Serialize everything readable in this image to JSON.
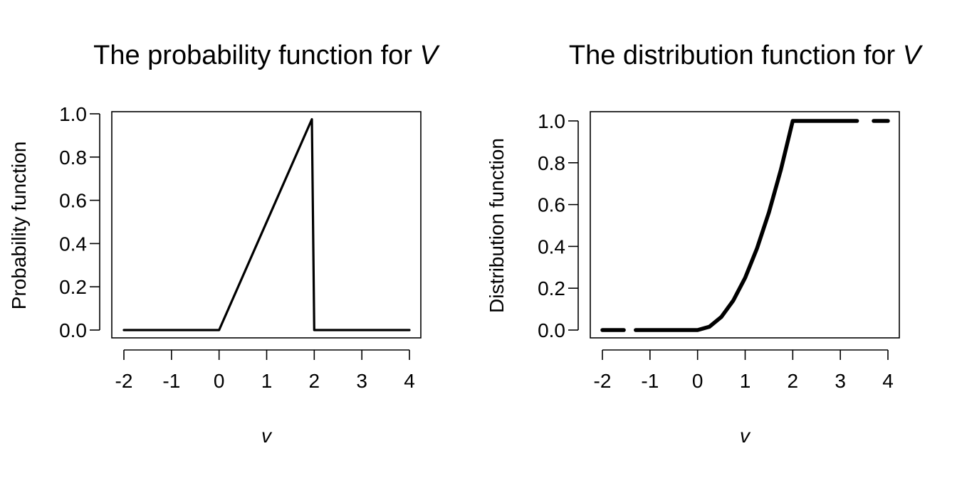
{
  "chart_data": [
    {
      "type": "line",
      "title_text": "The probability function for ",
      "title_var": "V",
      "xlabel": "v",
      "ylabel": "Probability function",
      "xlim": [
        -2,
        4
      ],
      "ylim": [
        0,
        1
      ],
      "xticks": [
        "-2",
        "-1",
        "0",
        "1",
        "2",
        "3",
        "4"
      ],
      "yticks": [
        "0.0",
        "0.2",
        "0.4",
        "0.6",
        "0.8",
        "1.0"
      ],
      "grid": false,
      "legend": "none",
      "line_color": "#000000",
      "series": [
        {
          "x": [
            -2,
            0,
            1.95,
            2.0,
            4
          ],
          "y": [
            0,
            0,
            0.975,
            0,
            0
          ]
        }
      ]
    },
    {
      "type": "line",
      "title_text": "The distribution function for ",
      "title_var": "V",
      "xlabel": "v",
      "ylabel": "Distribution function",
      "xlim": [
        -2,
        4
      ],
      "ylim": [
        0,
        1
      ],
      "xticks": [
        "-2",
        "-1",
        "0",
        "1",
        "2",
        "3",
        "4"
      ],
      "yticks": [
        "0.0",
        "0.2",
        "0.4",
        "0.6",
        "0.8",
        "1.0"
      ],
      "grid": false,
      "legend": "none",
      "line_color": "#000000",
      "series": [
        {
          "x": [
            -2,
            -1.55
          ],
          "y": [
            0,
            0
          ]
        },
        {
          "x": [
            -1.3,
            0,
            0.25,
            0.5,
            0.75,
            1,
            1.25,
            1.5,
            1.75,
            2,
            3.35
          ],
          "y": [
            0,
            0,
            0.016,
            0.063,
            0.141,
            0.25,
            0.391,
            0.563,
            0.766,
            1,
            1
          ]
        },
        {
          "x": [
            3.7,
            4
          ],
          "y": [
            1,
            1
          ]
        }
      ]
    }
  ]
}
